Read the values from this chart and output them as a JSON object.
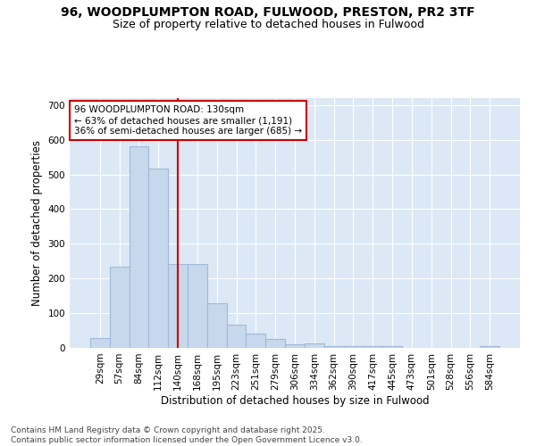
{
  "title_line1": "96, WOODPLUMPTON ROAD, FULWOOD, PRESTON, PR2 3TF",
  "title_line2": "Size of property relative to detached houses in Fulwood",
  "xlabel": "Distribution of detached houses by size in Fulwood",
  "ylabel": "Number of detached properties",
  "categories": [
    "29sqm",
    "57sqm",
    "84sqm",
    "112sqm",
    "140sqm",
    "168sqm",
    "195sqm",
    "223sqm",
    "251sqm",
    "279sqm",
    "306sqm",
    "334sqm",
    "362sqm",
    "390sqm",
    "417sqm",
    "445sqm",
    "473sqm",
    "501sqm",
    "528sqm",
    "556sqm",
    "584sqm"
  ],
  "values": [
    28,
    233,
    580,
    517,
    243,
    243,
    128,
    68,
    42,
    27,
    10,
    13,
    5,
    5,
    5,
    5,
    0,
    0,
    0,
    0,
    5
  ],
  "bar_color": "#c8d8ec",
  "bar_edge_color": "#a0b8d8",
  "vline_x_index": 4,
  "vline_color": "#cc0000",
  "annotation_text": "96 WOODPLUMPTON ROAD: 130sqm\n← 63% of detached houses are smaller (1,191)\n36% of semi-detached houses are larger (685) →",
  "annotation_box_color": "white",
  "annotation_border_color": "#cc0000",
  "ylim": [
    0,
    720
  ],
  "yticks": [
    0,
    100,
    200,
    300,
    400,
    500,
    600,
    700
  ],
  "background_color": "#dce8f5",
  "grid_color": "white",
  "footer_text": "Contains HM Land Registry data © Crown copyright and database right 2025.\nContains public sector information licensed under the Open Government Licence v3.0.",
  "title_fontsize": 10,
  "subtitle_fontsize": 9,
  "axis_label_fontsize": 8.5,
  "tick_fontsize": 7.5,
  "annotation_fontsize": 7.5,
  "footer_fontsize": 6.5
}
